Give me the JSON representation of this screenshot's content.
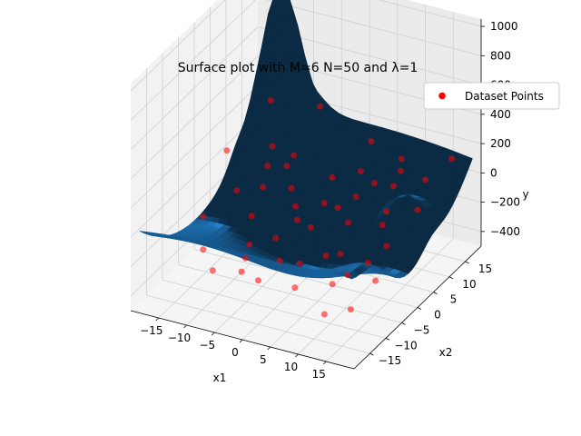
{
  "chart_data": {
    "type": "surface",
    "title": "Surface plot with M=6 N=50 and λ=1",
    "xlabel": "x1",
    "ylabel": "x2",
    "zlabel": "y",
    "xlim": [
      -20,
      20
    ],
    "ylim": [
      -20,
      20
    ],
    "zlim": [
      -500,
      1050
    ],
    "x_ticks": [
      -15,
      -10,
      -5,
      0,
      5,
      10,
      15
    ],
    "y_ticks": [
      -15,
      -10,
      -5,
      0,
      5,
      10,
      15
    ],
    "z_ticks": [
      -400,
      -200,
      0,
      200,
      400,
      600,
      800,
      1000
    ],
    "grid": true,
    "legend": {
      "position": "top-right",
      "entries": [
        "Dataset Points"
      ]
    },
    "surface_color": "#1f77b4",
    "points_color": "#ff0000",
    "series": [
      {
        "name": "Dataset Points",
        "points": [
          [
            -14,
            14,
            -30
          ],
          [
            -12,
            9,
            -40
          ],
          [
            -10,
            4,
            -60
          ],
          [
            -8,
            -3,
            -90
          ],
          [
            -6,
            6,
            -70
          ],
          [
            -4,
            -12,
            -150
          ],
          [
            -3,
            2,
            -80
          ],
          [
            -2,
            -6,
            -120
          ],
          [
            -1,
            10,
            -30
          ],
          [
            0,
            -15,
            -200
          ],
          [
            1,
            4,
            -60
          ],
          [
            2,
            -2,
            -90
          ],
          [
            3,
            12,
            10
          ],
          [
            4,
            -9,
            -170
          ],
          [
            5,
            7,
            -40
          ],
          [
            6,
            -14,
            -210
          ],
          [
            7,
            1,
            -70
          ],
          [
            8,
            16,
            60
          ],
          [
            9,
            -5,
            -140
          ],
          [
            10,
            10,
            20
          ],
          [
            11,
            -11,
            -200
          ],
          [
            12,
            3,
            -80
          ],
          [
            13,
            -17,
            -260
          ],
          [
            14,
            13,
            40
          ],
          [
            15,
            -1,
            -110
          ],
          [
            16,
            7,
            -20
          ],
          [
            17,
            -8,
            -180
          ],
          [
            -15,
            -6,
            -100
          ],
          [
            -13,
            1,
            -50
          ],
          [
            -11,
            -13,
            -140
          ],
          [
            -9,
            12,
            0
          ],
          [
            -7,
            -17,
            -160
          ],
          [
            -5,
            -9,
            -130
          ],
          [
            -16,
            17,
            200
          ],
          [
            -17,
            5,
            100
          ],
          [
            2,
            17,
            100
          ],
          [
            6,
            11,
            -20
          ],
          [
            9,
            14,
            30
          ],
          [
            -6,
            15,
            300
          ],
          [
            11,
            6,
            -60
          ],
          [
            14,
            -5,
            -150
          ],
          [
            16,
            -14,
            -260
          ],
          [
            4,
            3,
            -40
          ],
          [
            -1,
            -1,
            -90
          ],
          [
            7,
            -6,
            -150
          ],
          [
            -3,
            -15,
            -170
          ],
          [
            12,
            -8,
            -190
          ],
          [
            -8,
            8,
            20
          ],
          [
            1,
            -10,
            -160
          ],
          [
            17,
            16,
            150
          ]
        ]
      }
    ]
  }
}
